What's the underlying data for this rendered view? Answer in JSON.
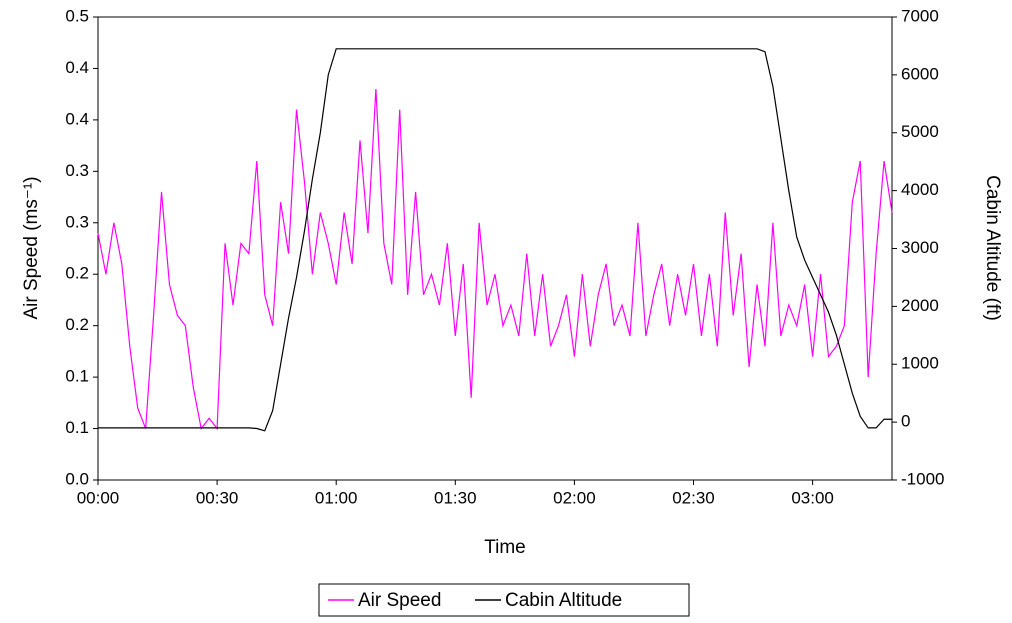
{
  "chart_data": {
    "type": "line",
    "x_label": "Time",
    "y_label": "Air Speed (ms⁻¹)",
    "y2_label": "Cabin Altitude (ft)",
    "x": [
      0,
      2,
      4,
      6,
      8,
      10,
      12,
      14,
      16,
      18,
      20,
      22,
      24,
      26,
      28,
      30,
      32,
      34,
      36,
      38,
      40,
      42,
      44,
      46,
      48,
      50,
      52,
      54,
      56,
      58,
      60,
      62,
      64,
      66,
      68,
      70,
      72,
      74,
      76,
      78,
      80,
      82,
      84,
      86,
      88,
      90,
      92,
      94,
      96,
      98,
      100,
      102,
      104,
      106,
      108,
      110,
      112,
      114,
      116,
      118,
      120,
      122,
      124,
      126,
      128,
      130,
      132,
      134,
      136,
      138,
      140,
      142,
      144,
      146,
      148,
      150,
      152,
      154,
      156,
      158,
      160,
      162,
      164,
      166,
      168,
      170,
      172,
      174,
      176,
      178,
      180,
      182,
      184,
      186,
      188,
      190,
      192,
      194,
      196,
      198,
      200
    ],
    "series": [
      {
        "name": "Air Speed",
        "color": "#ff00ff",
        "axis": "y",
        "values": [
          0.24,
          0.2,
          0.25,
          0.21,
          0.13,
          0.07,
          0.05,
          0.16,
          0.28,
          0.19,
          0.16,
          0.15,
          0.09,
          0.05,
          0.06,
          0.05,
          0.23,
          0.17,
          0.23,
          0.22,
          0.31,
          0.18,
          0.15,
          0.27,
          0.22,
          0.36,
          0.29,
          0.2,
          0.26,
          0.23,
          0.19,
          0.26,
          0.21,
          0.33,
          0.24,
          0.38,
          0.23,
          0.19,
          0.36,
          0.18,
          0.28,
          0.18,
          0.2,
          0.17,
          0.23,
          0.14,
          0.21,
          0.08,
          0.25,
          0.17,
          0.2,
          0.15,
          0.17,
          0.14,
          0.22,
          0.14,
          0.2,
          0.13,
          0.15,
          0.18,
          0.12,
          0.2,
          0.13,
          0.18,
          0.21,
          0.15,
          0.17,
          0.14,
          0.25,
          0.14,
          0.18,
          0.21,
          0.15,
          0.2,
          0.16,
          0.21,
          0.14,
          0.2,
          0.13,
          0.26,
          0.16,
          0.22,
          0.11,
          0.19,
          0.13,
          0.25,
          0.14,
          0.17,
          0.15,
          0.19,
          0.12,
          0.2,
          0.12,
          0.13,
          0.15,
          0.27,
          0.31,
          0.1,
          0.22,
          0.31,
          0.26
        ]
      },
      {
        "name": "Cabin Altitude",
        "color": "#000000",
        "axis": "y2",
        "values": [
          -100,
          -100,
          -100,
          -100,
          -100,
          -100,
          -100,
          -100,
          -100,
          -100,
          -100,
          -100,
          -100,
          -100,
          -100,
          -100,
          -100,
          -100,
          -100,
          -100,
          -110,
          -150,
          200,
          1000,
          1800,
          2500,
          3300,
          4200,
          5000,
          6000,
          6450,
          6450,
          6450,
          6450,
          6450,
          6450,
          6450,
          6450,
          6450,
          6450,
          6450,
          6450,
          6450,
          6450,
          6450,
          6450,
          6450,
          6450,
          6450,
          6450,
          6450,
          6450,
          6450,
          6450,
          6450,
          6450,
          6450,
          6450,
          6450,
          6450,
          6450,
          6450,
          6450,
          6450,
          6450,
          6450,
          6450,
          6450,
          6450,
          6450,
          6450,
          6450,
          6450,
          6450,
          6450,
          6450,
          6450,
          6450,
          6450,
          6450,
          6450,
          6450,
          6450,
          6450,
          6400,
          5800,
          4900,
          4000,
          3200,
          2800,
          2500,
          2200,
          1900,
          1500,
          1000,
          500,
          100,
          -100,
          -100,
          50,
          50
        ]
      }
    ],
    "xlim": [
      0,
      200
    ],
    "xticks": [
      {
        "value": 0,
        "label": "00:00"
      },
      {
        "value": 30,
        "label": "00:30"
      },
      {
        "value": 60,
        "label": "01:00"
      },
      {
        "value": 90,
        "label": "01:30"
      },
      {
        "value": 120,
        "label": "02:00"
      },
      {
        "value": 150,
        "label": "02:30"
      },
      {
        "value": 180,
        "label": "03:00"
      }
    ],
    "ylim": [
      0,
      0.45
    ],
    "yticks": [
      {
        "value": 0,
        "label": "0.0"
      },
      {
        "value": 0.05,
        "label": "0.1"
      },
      {
        "value": 0.1,
        "label": "0.1"
      },
      {
        "value": 0.15,
        "label": "0.2"
      },
      {
        "value": 0.2,
        "label": "0.2"
      },
      {
        "value": 0.25,
        "label": "0.3"
      },
      {
        "value": 0.3,
        "label": "0.3"
      },
      {
        "value": 0.35,
        "label": "0.4"
      },
      {
        "value": 0.4,
        "label": "0.4"
      },
      {
        "value": 0.45,
        "label": "0.5"
      }
    ],
    "y2lim": [
      -1000,
      7000
    ],
    "y2ticks": [
      -1000,
      0,
      1000,
      2000,
      3000,
      4000,
      5000,
      6000,
      7000
    ],
    "legend": "bottom"
  }
}
